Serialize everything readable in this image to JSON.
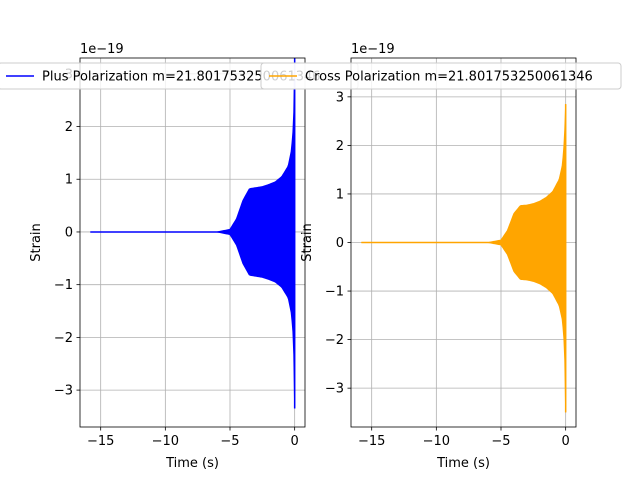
{
  "chart_data": [
    {
      "type": "line",
      "title": "",
      "xlabel": "Time (s)",
      "ylabel": "Strain",
      "offset_text": "1e−19",
      "xlim": [
        -16.6,
        0.8
      ],
      "ylim": [
        -3.7,
        3.3
      ],
      "xticks": [
        -15,
        -10,
        -5,
        0
      ],
      "xtick_labels": [
        "−15",
        "−10",
        "−5",
        "0"
      ],
      "yticks": [
        -3,
        -2,
        -1,
        0,
        1,
        2,
        3
      ],
      "ytick_labels": [
        "−3",
        "−2",
        "−1",
        "0",
        "1",
        "2",
        "3"
      ],
      "grid": true,
      "legend_placement": "top-center",
      "series": [
        {
          "name": "Plus Polarization m=21.801753250061346",
          "color": "#0000ff",
          "x_start": -15.8,
          "x_end": 0.0,
          "envelope_x": [
            -15.8,
            -6.0,
            -5.0,
            -4.5,
            -4.0,
            -3.5,
            -3.0,
            -2.5,
            -2.0,
            -1.5,
            -1.0,
            -0.5,
            -0.25,
            -0.1,
            -0.03,
            0.0
          ],
          "envelope_upper": [
            0.0,
            0.0,
            0.05,
            0.25,
            0.6,
            0.82,
            0.84,
            0.86,
            0.9,
            0.95,
            1.05,
            1.25,
            1.55,
            2.0,
            2.6,
            3.3
          ],
          "envelope_lower": [
            0.0,
            0.0,
            -0.05,
            -0.25,
            -0.6,
            -0.82,
            -0.84,
            -0.86,
            -0.9,
            -0.95,
            -1.05,
            -1.25,
            -1.55,
            -2.0,
            -2.7,
            -3.35
          ]
        }
      ]
    },
    {
      "type": "line",
      "title": "",
      "xlabel": "Time (s)",
      "ylabel": "Strain",
      "offset_text": "1e−19",
      "xlim": [
        -16.6,
        0.8
      ],
      "ylim": [
        -3.8,
        3.8
      ],
      "xticks": [
        -15,
        -10,
        -5,
        0
      ],
      "xtick_labels": [
        "−15",
        "−10",
        "−5",
        "0"
      ],
      "yticks": [
        -3,
        -2,
        -1,
        0,
        1,
        2,
        3
      ],
      "ytick_labels": [
        "−3",
        "−2",
        "−1",
        "0",
        "1",
        "2",
        "3"
      ],
      "grid": true,
      "legend_placement": "top-center",
      "series": [
        {
          "name": "Cross Polarization m=21.801753250061346",
          "color": "#ffa500",
          "x_start": -15.8,
          "x_end": 0.0,
          "envelope_x": [
            -15.8,
            -6.0,
            -5.0,
            -4.5,
            -4.0,
            -3.5,
            -3.0,
            -2.5,
            -2.0,
            -1.5,
            -1.0,
            -0.5,
            -0.25,
            -0.1,
            -0.03,
            0.0
          ],
          "envelope_upper": [
            0.0,
            0.0,
            0.05,
            0.25,
            0.6,
            0.76,
            0.77,
            0.8,
            0.85,
            0.93,
            1.05,
            1.3,
            1.6,
            2.1,
            2.6,
            2.85
          ],
          "envelope_lower": [
            0.0,
            0.0,
            -0.05,
            -0.25,
            -0.6,
            -0.76,
            -0.77,
            -0.8,
            -0.85,
            -0.93,
            -1.05,
            -1.3,
            -1.6,
            -2.1,
            -2.8,
            -3.5
          ]
        }
      ]
    }
  ]
}
